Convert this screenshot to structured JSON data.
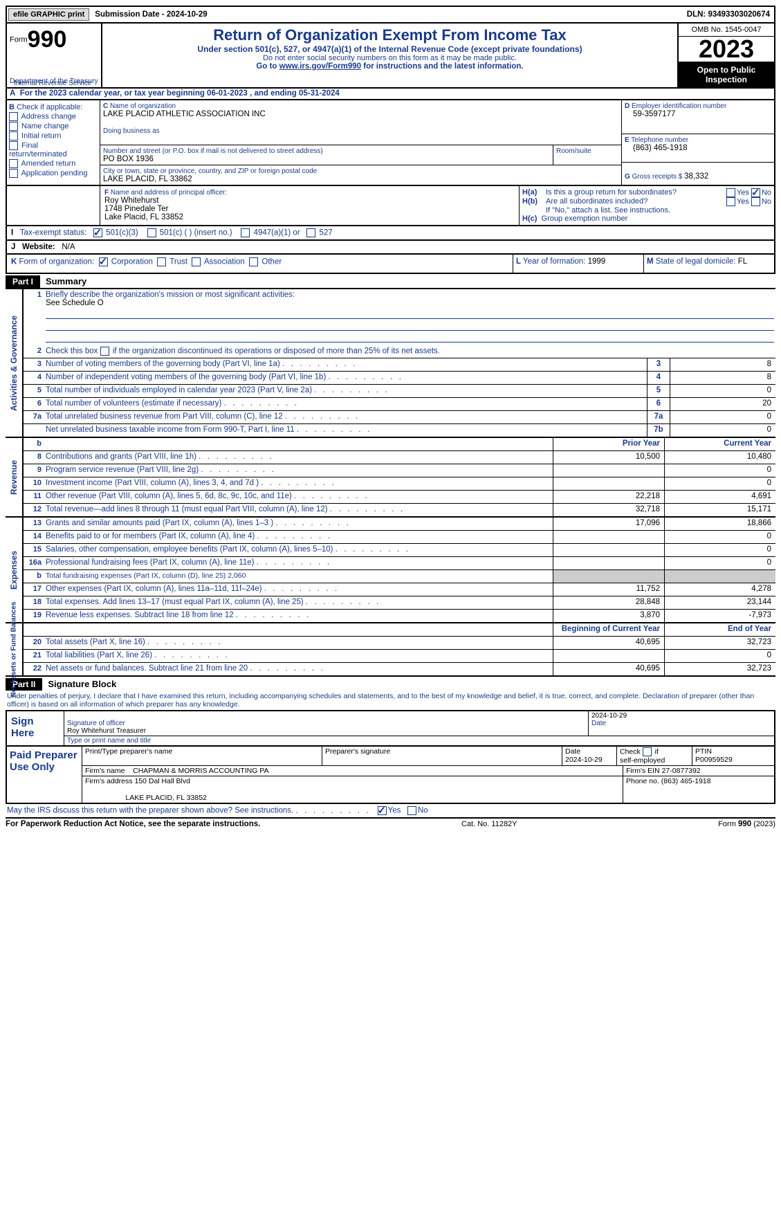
{
  "topbar": {
    "efile": "efile GRAPHIC print",
    "sub_label": "Submission Date - ",
    "sub_date": "2024-10-29",
    "dln_label": "DLN: ",
    "dln": "93493303020674"
  },
  "hdr": {
    "form_word": "Form",
    "form_num": "990",
    "title": "Return of Organization Exempt From Income Tax",
    "sub1": "Under section 501(c), 527, or 4947(a)(1) of the Internal Revenue Code (except private foundations)",
    "sub2": "Do not enter social security numbers on this form as it may be made public.",
    "sub3_pre": "Go to ",
    "sub3_link": "www.irs.gov/Form990",
    "sub3_post": " for instructions and the latest information.",
    "dept": "Department of the Treasury",
    "irs": "Internal Revenue Service",
    "omb": "OMB No. 1545-0047",
    "year": "2023",
    "open1": "Open to Public",
    "open2": "Inspection"
  },
  "A": {
    "text": "For the 2023 calendar year, or tax year beginning 06-01-2023    , and ending 05-31-2024"
  },
  "B": {
    "label": "Check if applicable:",
    "items": [
      "Address change",
      "Name change",
      "Initial return",
      "Final return/terminated",
      "Amended return",
      "Application pending"
    ]
  },
  "C": {
    "name_lbl": "Name of organization",
    "name": "LAKE PLACID ATHLETIC ASSOCIATION INC",
    "dba_lbl": "Doing business as",
    "dba": "",
    "street_lbl": "Number and street (or P.O. box if mail is not delivered to street address)",
    "street": "PO BOX 1936",
    "room_lbl": "Room/suite",
    "city_lbl": "City or town, state or province, country, and ZIP or foreign postal code",
    "city": "LAKE PLACID, FL  33862"
  },
  "D": {
    "lbl": "Employer identification number",
    "val": "59-3597177"
  },
  "E": {
    "lbl": "Telephone number",
    "val": "(863) 465-1918"
  },
  "F": {
    "lbl": "Name and address of principal officer:",
    "l1": "Roy Whitehurst",
    "l2": "1748 Pinedale Ter",
    "l3": "Lake Placid, FL  33852"
  },
  "G": {
    "lbl": "Gross receipts $ ",
    "val": "38,332"
  },
  "H": {
    "a_lbl": "Is this a group return for subordinates?",
    "b_lbl": "Are all subordinates included?",
    "b_note": "If \"No,\" attach a list. See instructions.",
    "c_lbl": "Group exemption number",
    "yes": "Yes",
    "no": "No"
  },
  "I": {
    "lbl": "Tax-exempt status:",
    "o1": "501(c)(3)",
    "o2": "501(c) (  ) (insert no.)",
    "o3": "4947(a)(1) or",
    "o4": "527"
  },
  "J": {
    "lbl": "Website:",
    "val": "N/A"
  },
  "K": {
    "lbl": "Form of organization:",
    "o1": "Corporation",
    "o2": "Trust",
    "o3": "Association",
    "o4": "Other"
  },
  "L": {
    "lbl": "Year of formation: ",
    "val": "1999"
  },
  "M": {
    "lbl": "State of legal domicile: ",
    "val": "FL"
  },
  "part1": {
    "bar": "Part I",
    "title": "Summary",
    "l1": {
      "n": "1",
      "t": "Briefly describe the organization's mission or most significant activities:",
      "ans": "See Schedule O"
    },
    "l2": {
      "n": "2",
      "t": "Check this box        if the organization discontinued its operations or disposed of more than 25% of its net assets."
    },
    "rows_gov": [
      {
        "n": "3",
        "t": "Number of voting members of the governing body (Part VI, line 1a)",
        "box": "3",
        "v": "8"
      },
      {
        "n": "4",
        "t": "Number of independent voting members of the governing body (Part VI, line 1b)",
        "box": "4",
        "v": "8"
      },
      {
        "n": "5",
        "t": "Total number of individuals employed in calendar year 2023 (Part V, line 2a)",
        "box": "5",
        "v": "0"
      },
      {
        "n": "6",
        "t": "Total number of volunteers (estimate if necessary)",
        "box": "6",
        "v": "20"
      },
      {
        "n": "7a",
        "t": "Total unrelated business revenue from Part VIII, column (C), line 12",
        "box": "7a",
        "v": "0"
      },
      {
        "n": "",
        "t": "Net unrelated business taxable income from Form 990-T, Part I, line 11",
        "box": "7b",
        "v": "0"
      }
    ],
    "hdr_prior": "Prior Year",
    "hdr_curr": "Current Year",
    "rows_rev": [
      {
        "n": "8",
        "t": "Contributions and grants (Part VIII, line 1h)",
        "p": "10,500",
        "c": "10,480"
      },
      {
        "n": "9",
        "t": "Program service revenue (Part VIII, line 2g)",
        "p": "",
        "c": "0"
      },
      {
        "n": "10",
        "t": "Investment income (Part VIII, column (A), lines 3, 4, and 7d )",
        "p": "",
        "c": "0"
      },
      {
        "n": "11",
        "t": "Other revenue (Part VIII, column (A), lines 5, 6d, 8c, 9c, 10c, and 11e)",
        "p": "22,218",
        "c": "4,691"
      },
      {
        "n": "12",
        "t": "Total revenue—add lines 8 through 11 (must equal Part VIII, column (A), line 12)",
        "p": "32,718",
        "c": "15,171"
      }
    ],
    "rows_exp": [
      {
        "n": "13",
        "t": "Grants and similar amounts paid (Part IX, column (A), lines 1–3 )",
        "p": "17,096",
        "c": "18,866"
      },
      {
        "n": "14",
        "t": "Benefits paid to or for members (Part IX, column (A), line 4)",
        "p": "",
        "c": "0"
      },
      {
        "n": "15",
        "t": "Salaries, other compensation, employee benefits (Part IX, column (A), lines 5–10)",
        "p": "",
        "c": "0"
      },
      {
        "n": "16a",
        "t": "Professional fundraising fees (Part IX, column (A), line 11e)",
        "p": "",
        "c": "0"
      },
      {
        "n": "b",
        "t": "Total fundraising expenses (Part IX, column (D), line 25) 2,060",
        "p": "__SHADE__",
        "c": "__SHADE__",
        "small": true
      },
      {
        "n": "17",
        "t": "Other expenses (Part IX, column (A), lines 11a–11d, 11f–24e)",
        "p": "11,752",
        "c": "4,278"
      },
      {
        "n": "18",
        "t": "Total expenses. Add lines 13–17 (must equal Part IX, column (A), line 25)",
        "p": "28,848",
        "c": "23,144"
      },
      {
        "n": "19",
        "t": "Revenue less expenses. Subtract line 18 from line 12",
        "p": "3,870",
        "c": "-7,973"
      }
    ],
    "hdr_beg": "Beginning of Current Year",
    "hdr_end": "End of Year",
    "rows_net": [
      {
        "n": "20",
        "t": "Total assets (Part X, line 16)",
        "p": "40,695",
        "c": "32,723"
      },
      {
        "n": "21",
        "t": "Total liabilities (Part X, line 26)",
        "p": "",
        "c": "0"
      },
      {
        "n": "22",
        "t": "Net assets or fund balances. Subtract line 21 from line 20",
        "p": "40,695",
        "c": "32,723"
      }
    ],
    "vlab_gov": "Activities & Governance",
    "vlab_rev": "Revenue",
    "vlab_exp": "Expenses",
    "vlab_net": "Net Assets or\nFund Balances"
  },
  "part2": {
    "bar": "Part II",
    "title": "Signature Block",
    "decl": "Under penalties of perjury, I declare that I have examined this return, including accompanying schedules and statements, and to the best of my knowledge and belief, it is true, correct, and complete. Declaration of preparer (other than officer) is based on all information of which preparer has any knowledge.",
    "sign_here": "Sign Here",
    "sig_of": "Signature of officer",
    "sig_name": "Roy Whitehurst  Treasurer",
    "sig_type": "Type or print name and title",
    "sig_date_lbl": "Date",
    "sig_date": "2024-10-29",
    "paid": "Paid Preparer Use Only",
    "pp": {
      "name_lbl": "Print/Type preparer's name",
      "sig_lbl": "Preparer's signature",
      "date_lbl": "Date",
      "date": "2024-10-29",
      "check_lbl": "Check        if self-employed",
      "ptin_lbl": "PTIN",
      "ptin": "P00959529",
      "firm_lbl": "Firm's name",
      "firm": "CHAPMAN & MORRIS ACCOUNTING PA",
      "ein_lbl": "Firm's EIN ",
      "ein": "27-0877392",
      "addr_lbl": "Firm's address ",
      "addr1": "150 Dal Hall Blvd",
      "addr2": "LAKE PLACID, FL  33852",
      "phone_lbl": "Phone no. ",
      "phone": "(863) 465-1918"
    },
    "may": "May the IRS discuss this return with the preparer shown above? See instructions.",
    "yes": "Yes",
    "no": "No"
  },
  "footer": {
    "l": "For Paperwork Reduction Act Notice, see the separate instructions.",
    "c": "Cat. No. 11282Y",
    "r": "Form 990 (2023)"
  }
}
